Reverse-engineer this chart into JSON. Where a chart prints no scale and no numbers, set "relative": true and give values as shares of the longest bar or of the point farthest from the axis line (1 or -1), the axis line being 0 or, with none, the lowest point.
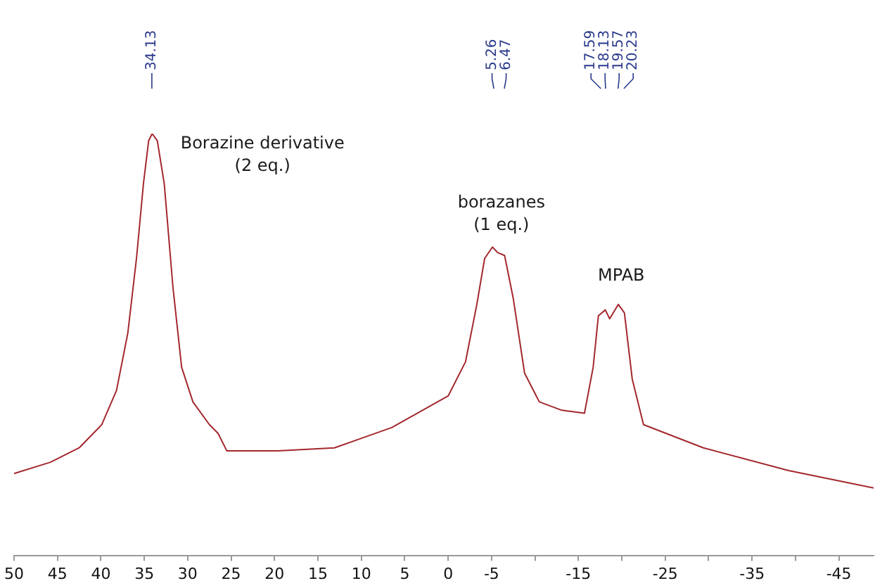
{
  "chart_data": {
    "type": "line",
    "relative": true,
    "xlim": [
      50,
      -49
    ],
    "xticks": [
      50,
      45,
      40,
      35,
      30,
      25,
      20,
      15,
      10,
      5,
      0,
      -5,
      {
        "value": -10,
        "label": null
      },
      -15,
      {
        "value": -20,
        "label": null
      },
      -25,
      {
        "value": -30,
        "label": null
      },
      -35,
      {
        "value": -40,
        "label": null
      },
      -45
    ],
    "grid": false,
    "legend": false,
    "marker": "none",
    "line_style": "solid",
    "series": [
      {
        "color": "#a3282e",
        "x": [
          50,
          45.8,
          42.5,
          39.9,
          38.2,
          36.9,
          35.9,
          35.1,
          34.5,
          34.1,
          33.5,
          32.7,
          31.7,
          30.7,
          29.4,
          27.5,
          26.5,
          25.5,
          19.6,
          13.1,
          6.5,
          0,
          -2,
          -3.3,
          -4.2,
          -5.1,
          -5.7,
          -6.5,
          -7.5,
          -8.8,
          -10.5,
          -13.1,
          -15.7,
          -16.7,
          -17.3,
          -18.1,
          -18.6,
          -19.6,
          -20.3,
          -21.2,
          -22.5,
          -29.4,
          -39.2,
          -49
        ],
        "values": [
          0.194,
          0.221,
          0.255,
          0.31,
          0.391,
          0.527,
          0.704,
          0.881,
          0.983,
          1.0,
          0.983,
          0.881,
          0.636,
          0.446,
          0.364,
          0.31,
          0.289,
          0.248,
          0.248,
          0.255,
          0.303,
          0.378,
          0.459,
          0.595,
          0.704,
          0.731,
          0.718,
          0.711,
          0.609,
          0.432,
          0.364,
          0.344,
          0.337,
          0.446,
          0.568,
          0.582,
          0.561,
          0.595,
          0.575,
          0.418,
          0.31,
          0.255,
          0.201,
          0.16
        ]
      }
    ],
    "annotations": [
      {
        "text": "34.13",
        "x": 34.13
      },
      {
        "text": "5.26",
        "x": -5.26
      },
      {
        "text": "6.47",
        "x": -6.47
      },
      {
        "text": "17.59",
        "x": -17.59
      },
      {
        "text": "18.13",
        "x": -18.13
      },
      {
        "text": "19.57",
        "x": -19.57
      },
      {
        "text": "20.23",
        "x": -20.23
      },
      "Borazine derivative\n(2 eq.)",
      "borazanes\n(1 eq.)",
      "MPAB"
    ]
  }
}
